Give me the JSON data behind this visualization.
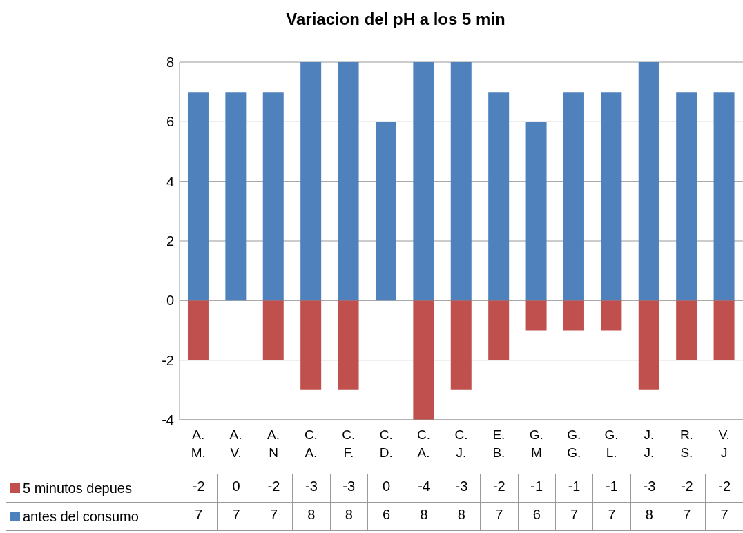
{
  "chart_data": {
    "type": "bar",
    "title": "Variacion del pH a los 5 min",
    "categories": [
      "A. M.",
      "A. V.",
      "A. N",
      "C. A.",
      "C. F.",
      "C. D.",
      "C. A.",
      "C. J.",
      "E. B.",
      "G. M",
      "G. G.",
      "G. L.",
      "J. J.",
      "R. S.",
      "V. J"
    ],
    "series": [
      {
        "name": "5 minutos depues",
        "color": "#c0504d",
        "values": [
          -2,
          0,
          -2,
          -3,
          -3,
          0,
          -4,
          -3,
          -2,
          -1,
          -1,
          -1,
          -3,
          -2,
          -2
        ]
      },
      {
        "name": "antes del consumo",
        "color": "#4f81bd",
        "values": [
          7,
          7,
          7,
          8,
          8,
          6,
          8,
          8,
          7,
          6,
          7,
          7,
          8,
          7,
          7
        ]
      }
    ],
    "stacked": true,
    "ylim": [
      -4,
      8
    ],
    "yticks": [
      -4,
      -2,
      0,
      2,
      4,
      6,
      8
    ],
    "grid": "y",
    "legend": "bottom",
    "data_labels": true
  }
}
